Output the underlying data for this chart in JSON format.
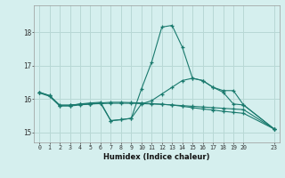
{
  "xlabel": "Humidex (Indice chaleur)",
  "bg_color": "#d5efee",
  "grid_color": "#b8d8d5",
  "line_color": "#1a7a6e",
  "xlim": [
    -0.5,
    23.5
  ],
  "ylim": [
    14.7,
    18.8
  ],
  "xticks": [
    0,
    1,
    2,
    3,
    4,
    5,
    6,
    7,
    8,
    9,
    10,
    11,
    12,
    13,
    14,
    15,
    16,
    17,
    18,
    19,
    20,
    23
  ],
  "yticks": [
    15,
    16,
    17,
    18
  ],
  "line1_x": [
    0,
    1,
    2,
    3,
    4,
    5,
    6,
    7,
    8,
    9,
    10,
    11,
    12,
    13,
    14,
    15,
    16,
    17,
    18,
    19,
    20,
    23
  ],
  "line1_y": [
    16.2,
    16.1,
    15.8,
    15.8,
    15.85,
    15.88,
    15.9,
    15.35,
    15.38,
    15.42,
    16.3,
    17.1,
    18.15,
    18.2,
    17.55,
    16.62,
    16.55,
    16.35,
    16.25,
    16.25,
    15.82,
    15.1
  ],
  "line2_x": [
    0,
    1,
    2,
    3,
    4,
    5,
    6,
    7,
    8,
    9,
    10,
    11,
    12,
    13,
    14,
    15,
    16,
    17,
    18,
    19,
    20,
    23
  ],
  "line2_y": [
    16.2,
    16.1,
    15.82,
    15.82,
    15.84,
    15.85,
    15.86,
    15.87,
    15.87,
    15.87,
    15.86,
    15.85,
    15.84,
    15.82,
    15.8,
    15.78,
    15.76,
    15.74,
    15.72,
    15.7,
    15.68,
    15.1
  ],
  "line3_x": [
    3,
    4,
    5,
    6,
    7,
    8,
    9,
    10,
    11,
    12,
    13,
    14,
    15,
    16,
    17,
    18,
    19,
    20,
    23
  ],
  "line3_y": [
    15.82,
    15.84,
    15.85,
    15.87,
    15.35,
    15.38,
    15.42,
    15.85,
    15.95,
    16.15,
    16.35,
    16.55,
    16.62,
    16.55,
    16.35,
    16.2,
    15.85,
    15.82,
    15.1
  ],
  "line4_x": [
    0,
    1,
    2,
    3,
    4,
    5,
    6,
    7,
    8,
    9,
    10,
    11,
    12,
    13,
    14,
    15,
    16,
    17,
    18,
    19,
    20,
    23
  ],
  "line4_y": [
    16.18,
    16.08,
    15.79,
    15.79,
    15.82,
    15.85,
    15.88,
    15.9,
    15.9,
    15.89,
    15.88,
    15.86,
    15.84,
    15.82,
    15.78,
    15.74,
    15.7,
    15.67,
    15.63,
    15.6,
    15.57,
    15.1
  ]
}
